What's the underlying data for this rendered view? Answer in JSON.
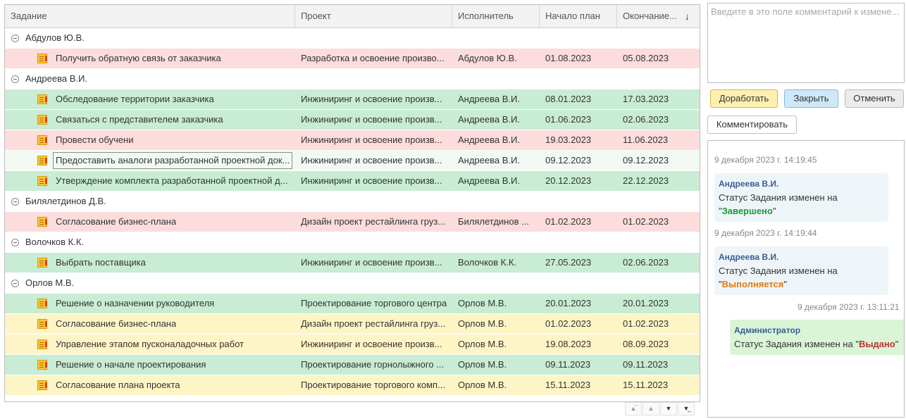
{
  "grid": {
    "columns": [
      "Задание",
      "Проект",
      "Исполнитель",
      "Начало план",
      "Окончание..."
    ],
    "sort_indicator": "↓",
    "rows": [
      {
        "type": "group",
        "label": "Абдулов Ю.В."
      },
      {
        "type": "task",
        "color": "red",
        "task": "Получить обратную связь от заказчика",
        "project": "Разработка и освоение произво...",
        "executor": "Абдулов Ю.В.",
        "start": "01.08.2023",
        "end": "05.08.2023"
      },
      {
        "type": "group",
        "label": "Андреева В.И."
      },
      {
        "type": "task",
        "color": "green",
        "task": "Обследование территории заказчика",
        "project": "Инжиниринг и освоение произв...",
        "executor": "Андреева В.И.",
        "start": "08.01.2023",
        "end": "17.03.2023"
      },
      {
        "type": "task",
        "color": "green",
        "task": "Связаться с представителем заказчика",
        "project": "Инжиниринг и освоение произв...",
        "executor": "Андреева В.И.",
        "start": "01.06.2023",
        "end": "02.06.2023"
      },
      {
        "type": "task",
        "color": "red",
        "task": "Провести обучени",
        "project": "Инжиниринг и освоение произв...",
        "executor": "Андреева В.И.",
        "start": "19.03.2023",
        "end": "11.06.2023"
      },
      {
        "type": "task",
        "color": "selected",
        "task": "Предоставить аналоги разработанной проектной док...",
        "project": "Инжиниринг и освоение произв...",
        "executor": "Андреева В.И.",
        "start": "09.12.2023",
        "end": "09.12.2023"
      },
      {
        "type": "task",
        "color": "green",
        "task": "Утверждение комплекта разработанной проектной д...",
        "project": "Инжиниринг и освоение произв...",
        "executor": "Андреева В.И.",
        "start": "20.12.2023",
        "end": "22.12.2023"
      },
      {
        "type": "group",
        "label": "Билялетдинов Д.В."
      },
      {
        "type": "task",
        "color": "red",
        "task": "Согласование бизнес-плана",
        "project": "Дизайн проект рестайлинга груз...",
        "executor": "Билялетдинов ...",
        "start": "01.02.2023",
        "end": "01.02.2023"
      },
      {
        "type": "group",
        "label": "Волочков К.К."
      },
      {
        "type": "task",
        "color": "green",
        "task": "Выбрать поставщика",
        "project": "Инжиниринг и освоение произв...",
        "executor": "Волочков К.К.",
        "start": "27.05.2023",
        "end": "02.06.2023"
      },
      {
        "type": "group",
        "label": "Орлов М.В."
      },
      {
        "type": "task",
        "color": "green",
        "task": "Решение о назначении руководителя",
        "project": "Проектирование торгового центра",
        "executor": "Орлов М.В.",
        "start": "20.01.2023",
        "end": "20.01.2023"
      },
      {
        "type": "task",
        "color": "yellow",
        "task": "Согласование бизнес-плана",
        "project": "Дизайн проект рестайлинга груз...",
        "executor": "Орлов М.В.",
        "start": "01.02.2023",
        "end": "01.02.2023"
      },
      {
        "type": "task",
        "color": "yellow",
        "task": "Управление этапом пусконаладочных работ",
        "project": "Инжиниринг и освоение произв...",
        "executor": "Орлов М.В.",
        "start": "19.08.2023",
        "end": "08.09.2023"
      },
      {
        "type": "task",
        "color": "green",
        "task": "Решение о начале проектирования",
        "project": "Проектирование горнолыжного ...",
        "executor": "Орлов М.В.",
        "start": "09.11.2023",
        "end": "09.11.2023"
      },
      {
        "type": "task",
        "color": "yellow",
        "task": "Согласование плана проекта",
        "project": "Проектирование торгового комп...",
        "executor": "Орлов М.В.",
        "start": "15.11.2023",
        "end": "15.11.2023"
      }
    ]
  },
  "comment": {
    "placeholder": "Введите в это поле комментарий к измене..."
  },
  "actions": {
    "rework": "Доработать",
    "close": "Закрыть",
    "cancel": "Отменить",
    "comment": "Комментировать"
  },
  "history": [
    {
      "timestamp": "9 декабря 2023 г. 14:19:45",
      "author": "Андреева В.И.",
      "text": "Статус Задания изменен на ",
      "status": "Завершено",
      "status_color": "green"
    },
    {
      "timestamp": "9 декабря 2023 г. 14:19:44",
      "author": "Андреева В.И.",
      "text": "Статус Задания изменен на ",
      "status": "Выполняется",
      "status_color": "orange"
    },
    {
      "timestamp": "9 декабря 2023 г. 13:11:21",
      "author": "Администратор",
      "text": "Статус Задания изменен на ",
      "status": "Выдано",
      "status_color": "red"
    }
  ],
  "colors": {
    "row_red": "#fcdcdc",
    "row_green": "#c8ecd4",
    "row_yellow": "#fdf5c6",
    "status_done": "#1b9a3a",
    "status_progress": "#e07a10",
    "status_issued": "#c03030"
  }
}
